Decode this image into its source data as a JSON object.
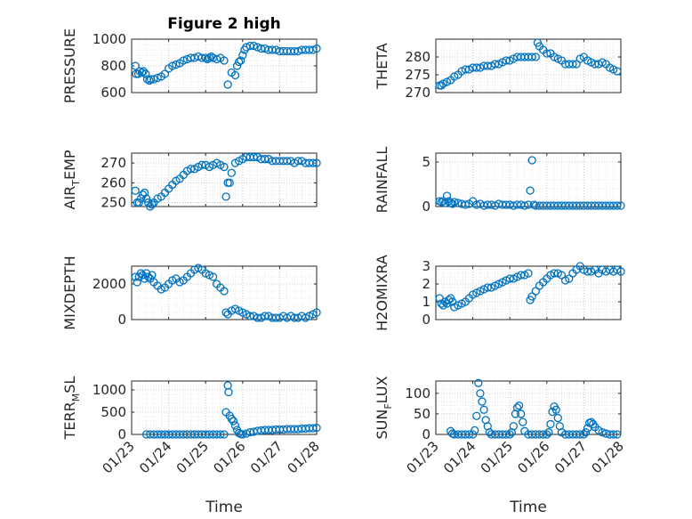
{
  "figure": {
    "title": "Figure 2 high",
    "marker_color": "#0072BD"
  },
  "chart_data": [
    {
      "type": "scatter",
      "id": "pressure",
      "title": "Figure 2 high",
      "ylabel": "PRESSURE",
      "ylim": [
        600,
        1000
      ],
      "yticks": [
        600,
        800,
        1000
      ],
      "xlim": [
        0,
        5
      ],
      "xticks": [
        0,
        1,
        2,
        3,
        4,
        5
      ],
      "xlabel": "",
      "grid": true,
      "x": [
        0.1,
        0.12,
        0.18,
        0.22,
        0.28,
        0.32,
        0.38,
        0.42,
        0.48,
        0.52,
        0.6,
        0.7,
        0.8,
        0.9,
        1.0,
        1.1,
        1.2,
        1.3,
        1.4,
        1.5,
        1.6,
        1.7,
        1.8,
        1.9,
        2.0,
        2.05,
        2.1,
        2.15,
        2.2,
        2.3,
        2.4,
        2.5,
        2.6,
        2.7,
        2.8,
        2.85,
        2.9,
        2.95,
        3.0,
        3.05,
        3.1,
        3.2,
        3.3,
        3.4,
        3.5,
        3.6,
        3.7,
        3.8,
        3.9,
        4.0,
        4.1,
        4.2,
        4.3,
        4.4,
        4.5,
        4.6,
        4.7,
        4.8,
        4.9,
        5.0
      ],
      "y": [
        800,
        740,
        740,
        760,
        750,
        760,
        740,
        700,
        690,
        700,
        700,
        710,
        720,
        740,
        780,
        800,
        810,
        820,
        840,
        850,
        860,
        860,
        870,
        860,
        860,
        850,
        860,
        870,
        860,
        850,
        860,
        840,
        660,
        750,
        730,
        800,
        830,
        840,
        880,
        920,
        940,
        950,
        950,
        940,
        930,
        930,
        920,
        920,
        920,
        910,
        910,
        910,
        910,
        910,
        910,
        920,
        920,
        920,
        920,
        930
      ]
    },
    {
      "type": "scatter",
      "id": "theta",
      "ylabel": "THETA",
      "ylim": [
        270,
        285
      ],
      "yticks": [
        270,
        275,
        280
      ],
      "xlim": [
        0,
        5
      ],
      "xticks": [
        0,
        1,
        2,
        3,
        4,
        5
      ],
      "xlabel": "",
      "grid": true,
      "x": [
        0.1,
        0.15,
        0.2,
        0.3,
        0.4,
        0.5,
        0.6,
        0.7,
        0.8,
        0.9,
        1.0,
        1.1,
        1.2,
        1.3,
        1.4,
        1.5,
        1.6,
        1.7,
        1.8,
        1.9,
        2.0,
        2.1,
        2.2,
        2.3,
        2.4,
        2.5,
        2.6,
        2.7,
        2.75,
        2.8,
        2.9,
        3.0,
        3.1,
        3.2,
        3.3,
        3.4,
        3.5,
        3.6,
        3.7,
        3.8,
        3.9,
        4.0,
        4.1,
        4.2,
        4.3,
        4.4,
        4.5,
        4.6,
        4.7,
        4.8,
        4.9
      ],
      "y": [
        272,
        272,
        272.5,
        273,
        273.5,
        274.5,
        275,
        276,
        276.5,
        276.5,
        277,
        277,
        277,
        277.5,
        277.5,
        277.5,
        278,
        278,
        278.5,
        279,
        279,
        279.5,
        280,
        280,
        280,
        280,
        280,
        280,
        284,
        283,
        282,
        281,
        281,
        280,
        279.5,
        279,
        278,
        278,
        278,
        278,
        279.5,
        280,
        279,
        278.5,
        278,
        278,
        278.5,
        278,
        277,
        276.5,
        276
      ]
    },
    {
      "type": "scatter",
      "id": "air_temp",
      "ylabel": "AIR_TEMP",
      "ylim": [
        248,
        275
      ],
      "yticks": [
        250,
        260,
        270
      ],
      "xlim": [
        0,
        5
      ],
      "xticks": [
        0,
        1,
        2,
        3,
        4,
        5
      ],
      "xlabel": "",
      "grid": true,
      "x": [
        0.1,
        0.15,
        0.2,
        0.25,
        0.3,
        0.35,
        0.4,
        0.45,
        0.5,
        0.55,
        0.6,
        0.7,
        0.8,
        0.9,
        1.0,
        1.1,
        1.2,
        1.3,
        1.4,
        1.5,
        1.6,
        1.7,
        1.8,
        1.9,
        2.0,
        2.1,
        2.2,
        2.3,
        2.4,
        2.5,
        2.55,
        2.6,
        2.65,
        2.7,
        2.8,
        2.9,
        3.0,
        3.1,
        3.2,
        3.3,
        3.4,
        3.5,
        3.6,
        3.7,
        3.8,
        3.9,
        4.0,
        4.1,
        4.2,
        4.3,
        4.4,
        4.5,
        4.6,
        4.7,
        4.8,
        4.9,
        5.0
      ],
      "y": [
        256,
        250,
        250,
        252,
        254,
        255,
        252,
        250,
        248,
        249,
        250,
        252,
        253,
        255,
        257,
        259,
        261,
        262,
        264,
        266,
        267,
        267,
        268,
        269,
        269,
        268,
        269,
        270,
        269,
        268,
        253,
        260,
        260,
        265,
        270,
        271,
        272,
        273,
        273,
        273,
        273,
        272,
        272,
        272,
        271,
        271,
        271,
        271,
        271,
        271,
        270,
        271,
        271,
        270,
        270,
        270,
        270
      ]
    },
    {
      "type": "scatter",
      "id": "rainfall",
      "ylabel": "RAINFALL",
      "ylim": [
        0,
        6
      ],
      "yticks": [
        0,
        5
      ],
      "xlim": [
        0,
        5
      ],
      "xticks": [
        0,
        1,
        2,
        3,
        4,
        5
      ],
      "xlabel": "",
      "grid": true,
      "x": [
        0.1,
        0.15,
        0.2,
        0.25,
        0.3,
        0.35,
        0.4,
        0.45,
        0.5,
        0.6,
        0.7,
        0.8,
        0.9,
        1.0,
        1.1,
        1.2,
        1.3,
        1.4,
        1.5,
        1.6,
        1.7,
        1.8,
        1.9,
        2.0,
        2.1,
        2.2,
        2.3,
        2.4,
        2.5,
        2.55,
        2.6,
        2.65,
        2.7,
        2.8,
        2.9,
        3.0,
        3.1,
        3.2,
        3.3,
        3.4,
        3.5,
        3.6,
        3.7,
        3.8,
        3.9,
        4.0,
        4.1,
        4.2,
        4.3,
        4.4,
        4.5,
        4.6,
        4.7,
        4.8,
        4.9,
        5.0
      ],
      "y": [
        0.6,
        0.5,
        0.6,
        0.4,
        1.2,
        0.6,
        0.4,
        0.3,
        0.5,
        0.4,
        0.3,
        0.2,
        0.3,
        0.6,
        0.2,
        0.3,
        0.1,
        0.2,
        0.2,
        0.1,
        0.3,
        0.2,
        0.2,
        0.2,
        0.1,
        0.2,
        0.2,
        0.1,
        0.2,
        1.8,
        5.2,
        0.2,
        0.1,
        0.1,
        0.1,
        0.1,
        0.1,
        0.1,
        0.1,
        0.1,
        0.1,
        0.1,
        0.1,
        0.1,
        0.1,
        0.1,
        0.1,
        0.1,
        0.1,
        0.1,
        0.1,
        0.1,
        0.1,
        0.1,
        0.1,
        0.1
      ]
    },
    {
      "type": "scatter",
      "id": "mixdepth",
      "ylabel": "MIXDEPTH",
      "ylim": [
        0,
        3000
      ],
      "yticks": [
        0,
        2000
      ],
      "xlim": [
        0,
        5
      ],
      "xticks": [
        0,
        1,
        2,
        3,
        4,
        5
      ],
      "xlabel": "",
      "grid": true,
      "x": [
        0.1,
        0.15,
        0.2,
        0.25,
        0.3,
        0.35,
        0.4,
        0.45,
        0.5,
        0.55,
        0.6,
        0.7,
        0.8,
        0.9,
        1.0,
        1.1,
        1.2,
        1.3,
        1.4,
        1.5,
        1.6,
        1.7,
        1.8,
        1.9,
        2.0,
        2.1,
        2.2,
        2.3,
        2.4,
        2.5,
        2.55,
        2.6,
        2.7,
        2.8,
        2.9,
        3.0,
        3.1,
        3.2,
        3.3,
        3.4,
        3.5,
        3.6,
        3.7,
        3.8,
        3.9,
        4.0,
        4.1,
        4.2,
        4.3,
        4.4,
        4.5,
        4.6,
        4.7,
        4.8,
        4.9,
        5.0
      ],
      "y": [
        2400,
        2100,
        2400,
        2600,
        2500,
        2300,
        2600,
        2400,
        2300,
        2500,
        2100,
        1900,
        1700,
        1800,
        2000,
        2200,
        2300,
        2100,
        2200,
        2400,
        2600,
        2800,
        2900,
        2800,
        2600,
        2500,
        2400,
        2000,
        1800,
        1600,
        400,
        300,
        500,
        600,
        500,
        400,
        300,
        200,
        200,
        100,
        100,
        200,
        200,
        100,
        100,
        100,
        200,
        100,
        200,
        100,
        100,
        200,
        100,
        200,
        300,
        400
      ]
    },
    {
      "type": "scatter",
      "id": "h2omixra",
      "ylabel": "H2OMIXRA",
      "ylim": [
        0,
        3
      ],
      "yticks": [
        0,
        1,
        2,
        3
      ],
      "xlim": [
        0,
        5
      ],
      "xticks": [
        0,
        1,
        2,
        3,
        4,
        5
      ],
      "xlabel": "",
      "grid": true,
      "x": [
        0.1,
        0.15,
        0.2,
        0.25,
        0.3,
        0.35,
        0.4,
        0.45,
        0.5,
        0.6,
        0.7,
        0.8,
        0.9,
        1.0,
        1.1,
        1.2,
        1.3,
        1.4,
        1.5,
        1.6,
        1.7,
        1.8,
        1.9,
        2.0,
        2.1,
        2.2,
        2.3,
        2.4,
        2.5,
        2.55,
        2.6,
        2.7,
        2.8,
        2.9,
        3.0,
        3.1,
        3.2,
        3.3,
        3.4,
        3.5,
        3.6,
        3.7,
        3.8,
        3.9,
        4.0,
        4.1,
        4.2,
        4.3,
        4.4,
        4.5,
        4.6,
        4.7,
        4.8,
        4.9,
        5.0
      ],
      "y": [
        1.2,
        0.9,
        0.8,
        1.0,
        0.9,
        1.1,
        1.2,
        1.0,
        0.7,
        0.8,
        0.9,
        1.0,
        1.2,
        1.4,
        1.5,
        1.6,
        1.7,
        1.8,
        1.8,
        1.9,
        2.0,
        2.1,
        2.2,
        2.3,
        2.3,
        2.4,
        2.5,
        2.5,
        2.6,
        1.1,
        1.3,
        1.6,
        1.9,
        2.1,
        2.3,
        2.5,
        2.6,
        2.6,
        2.5,
        2.2,
        2.3,
        2.6,
        2.8,
        3.0,
        2.8,
        2.7,
        2.7,
        2.8,
        2.6,
        2.8,
        2.7,
        2.8,
        2.7,
        2.8,
        2.7
      ]
    },
    {
      "type": "scatter",
      "id": "terr_msl",
      "ylabel": "TERR_MSL",
      "ylim": [
        0,
        1200
      ],
      "yticks": [
        0,
        500,
        1000
      ],
      "xlim": [
        0,
        5
      ],
      "xticks": [
        0,
        1,
        2,
        3,
        4,
        5
      ],
      "xticklabels": [
        "01/23",
        "01/24",
        "01/25",
        "01/26",
        "01/27",
        "01/28"
      ],
      "xlabel": "Time",
      "grid": true,
      "x": [
        0.4,
        0.5,
        0.6,
        0.7,
        0.8,
        0.9,
        1.0,
        1.1,
        1.2,
        1.3,
        1.4,
        1.5,
        1.6,
        1.7,
        1.8,
        1.9,
        2.0,
        2.1,
        2.2,
        2.3,
        2.4,
        2.5,
        2.55,
        2.6,
        2.62,
        2.65,
        2.7,
        2.75,
        2.8,
        2.85,
        2.9,
        2.95,
        3.0,
        3.1,
        3.2,
        3.3,
        3.4,
        3.5,
        3.6,
        3.7,
        3.8,
        3.9,
        4.0,
        4.1,
        4.2,
        4.3,
        4.4,
        4.5,
        4.6,
        4.7,
        4.8,
        4.9,
        5.0
      ],
      "y": [
        0,
        0,
        0,
        0,
        0,
        0,
        0,
        0,
        0,
        0,
        0,
        0,
        0,
        0,
        0,
        0,
        0,
        0,
        0,
        0,
        0,
        0,
        500,
        1100,
        950,
        420,
        350,
        300,
        200,
        100,
        30,
        10,
        0,
        20,
        50,
        60,
        80,
        90,
        100,
        100,
        100,
        110,
        110,
        110,
        120,
        120,
        120,
        120,
        130,
        130,
        140,
        140,
        150
      ]
    },
    {
      "type": "scatter",
      "id": "sun_flux",
      "ylabel": "SUN_FLUX",
      "ylim": [
        0,
        130
      ],
      "yticks": [
        0,
        50,
        100
      ],
      "xlim": [
        0,
        5
      ],
      "xticks": [
        0,
        1,
        2,
        3,
        4,
        5
      ],
      "xticklabels": [
        "01/23",
        "01/24",
        "01/25",
        "01/26",
        "01/27",
        "01/28"
      ],
      "xlabel": "Time",
      "grid": true,
      "x": [
        0.4,
        0.45,
        0.5,
        0.6,
        0.7,
        0.8,
        0.9,
        1.0,
        1.05,
        1.1,
        1.15,
        1.2,
        1.25,
        1.3,
        1.35,
        1.4,
        1.45,
        1.5,
        1.6,
        1.7,
        1.8,
        1.9,
        2.0,
        2.05,
        2.1,
        2.15,
        2.2,
        2.25,
        2.3,
        2.35,
        2.4,
        2.5,
        2.6,
        2.7,
        2.8,
        2.9,
        3.0,
        3.05,
        3.1,
        3.15,
        3.2,
        3.25,
        3.3,
        3.35,
        3.4,
        3.5,
        3.6,
        3.7,
        3.8,
        3.9,
        4.0,
        4.05,
        4.1,
        4.15,
        4.2,
        4.25,
        4.3,
        4.4,
        4.5,
        4.6,
        4.7,
        4.8,
        4.9
      ],
      "y": [
        8,
        2,
        0,
        0,
        0,
        0,
        0,
        0,
        10,
        45,
        125,
        100,
        80,
        60,
        35,
        20,
        5,
        0,
        0,
        0,
        0,
        0,
        0,
        5,
        20,
        50,
        65,
        70,
        50,
        30,
        8,
        0,
        0,
        0,
        0,
        0,
        0,
        5,
        25,
        55,
        68,
        60,
        40,
        20,
        5,
        0,
        0,
        0,
        0,
        0,
        0,
        5,
        15,
        28,
        30,
        25,
        18,
        10,
        5,
        2,
        0,
        0,
        0
      ]
    }
  ]
}
